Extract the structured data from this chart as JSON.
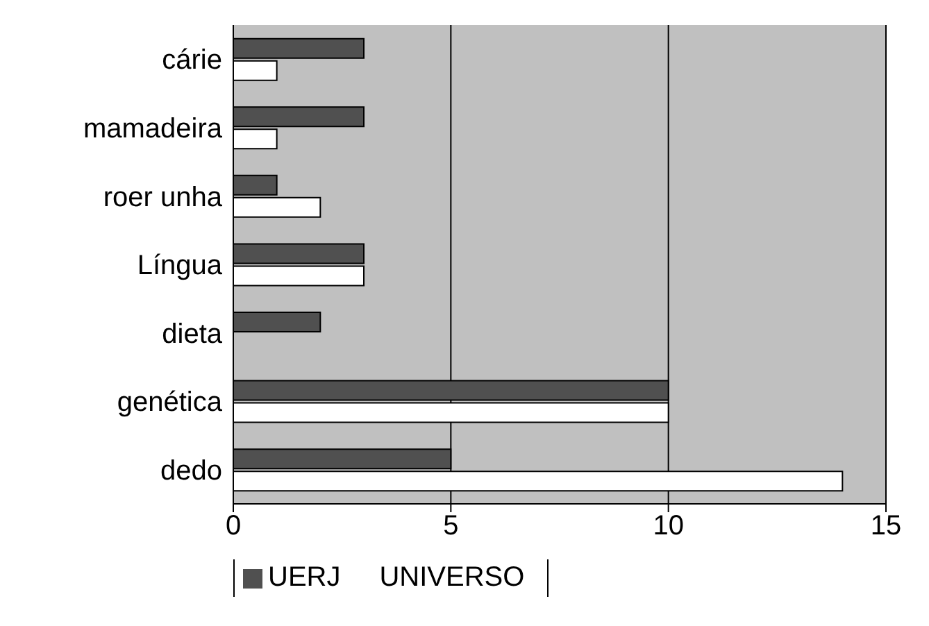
{
  "chart_data": {
    "type": "bar",
    "orientation": "horizontal",
    "categories": [
      "cárie",
      "mamadeira",
      "roer unha",
      "Língua",
      "dieta",
      "genética",
      "dedo"
    ],
    "series": [
      {
        "name": "UERJ",
        "color": "#505050",
        "values": [
          3,
          3,
          1,
          3,
          2,
          10,
          5
        ]
      },
      {
        "name": "UNIVERSO",
        "color": "#ffffff",
        "values": [
          1,
          1,
          2,
          3,
          0,
          10,
          14
        ]
      }
    ],
    "xlim": [
      0,
      15
    ],
    "xticks": [
      0,
      5,
      10,
      15
    ],
    "grid": "x",
    "legend": "bottom"
  }
}
